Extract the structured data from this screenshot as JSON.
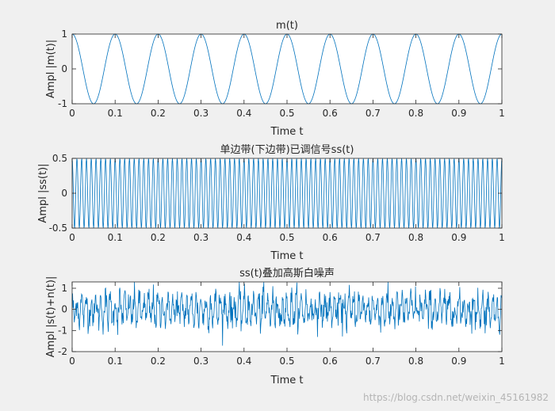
{
  "watermark": "https://blog.csdn.net/weixin_45161982",
  "chart_data": [
    {
      "type": "line",
      "title": "m(t)",
      "xlabel": "Time t",
      "ylabel": "Ampl |m(t)|",
      "xlim": [
        0,
        1
      ],
      "ylim": [
        -1,
        1
      ],
      "xticks": [
        "0",
        "0.1",
        "0.2",
        "0.3",
        "0.4",
        "0.5",
        "0.6",
        "0.7",
        "0.8",
        "0.9",
        "1"
      ],
      "yticks": [
        "-1",
        "0",
        "1"
      ],
      "color": "#0072bd",
      "series": [
        {
          "function": "cos",
          "amplitude": 1,
          "frequency_hz": 10,
          "x_range": [
            0,
            1
          ]
        }
      ]
    },
    {
      "type": "line",
      "title": "单边带(下边带)已调信号ss(t)",
      "xlabel": "Time t",
      "ylabel": "Ampl |ss(t)|",
      "xlim": [
        0,
        1
      ],
      "ylim": [
        -0.5,
        0.5
      ],
      "xticks": [
        "0",
        "0.1",
        "0.2",
        "0.3",
        "0.4",
        "0.5",
        "0.6",
        "0.7",
        "0.8",
        "0.9",
        "1"
      ],
      "yticks": [
        "-0.5",
        "0",
        "0.5"
      ],
      "color": "#0072bd",
      "series": [
        {
          "function": "cos",
          "amplitude": 0.5,
          "frequency_hz": 90,
          "x_range": [
            0,
            1
          ]
        }
      ]
    },
    {
      "type": "line",
      "title": "ss(t)叠加高斯白噪声",
      "xlabel": "Time t",
      "ylabel": "Ampl |s(t)+n(t)|",
      "xlim": [
        0,
        1
      ],
      "ylim": [
        -2,
        1.3
      ],
      "xticks": [
        "0",
        "0.1",
        "0.2",
        "0.3",
        "0.4",
        "0.5",
        "0.6",
        "0.7",
        "0.8",
        "0.9",
        "1"
      ],
      "yticks": [
        "-2",
        "-1",
        "0",
        "1"
      ],
      "color": "#0072bd",
      "series": [
        {
          "function": "cos+gaussian_noise",
          "amplitude": 0.5,
          "frequency_hz": 90,
          "noise_std": 0.35,
          "x_range": [
            0,
            1
          ]
        }
      ]
    }
  ]
}
